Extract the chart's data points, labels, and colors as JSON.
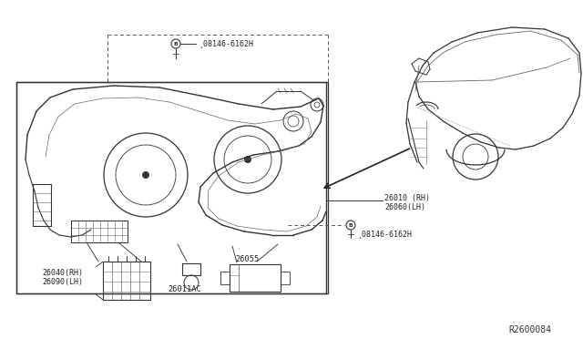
{
  "bg_color": "#ffffff",
  "line_color": "#333333",
  "text_color": "#222222",
  "part_labels": {
    "08146_top": "¸08146-6162H",
    "26010": "26010 (RH)\n26060(LH)",
    "08146_bottom": "¸08146-6162H",
    "26040": "26040(RH)\n26090(LH)",
    "26011AC": "26011AC",
    "26055": "26055"
  },
  "diagram_ref": "R2600084"
}
